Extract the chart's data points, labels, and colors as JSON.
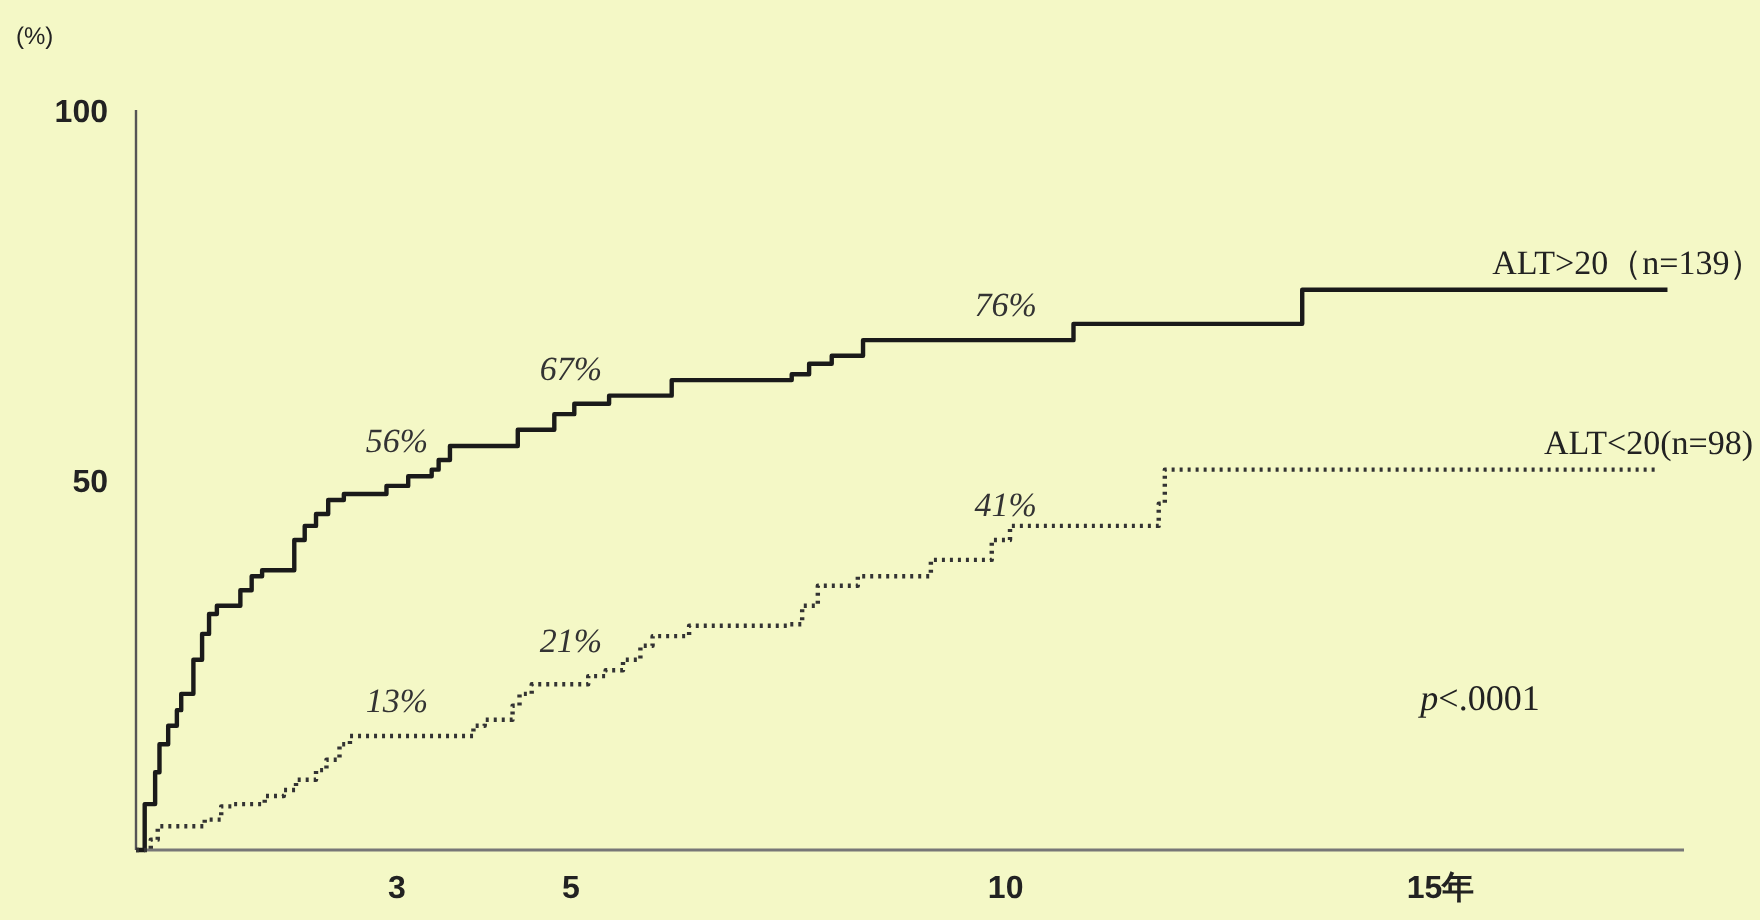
{
  "chart_data": {
    "type": "step",
    "ylabel": "(%)",
    "xlim": [
      0,
      17.8
    ],
    "ylim": [
      0,
      100
    ],
    "xticks": [
      3,
      5,
      10,
      {
        "value": 15,
        "label": "15年"
      }
    ],
    "yticks": [
      50,
      100
    ],
    "grid": false,
    "legend": false,
    "marker": "none",
    "series": [
      {
        "name": "ALT>20（n=139）",
        "color": "#1a1a1a",
        "line_style": "solid",
        "x": [
          0,
          0.1,
          0.22,
          0.27,
          0.37,
          0.47,
          0.52,
          0.66,
          0.76,
          0.84,
          0.93,
          1.2,
          1.33,
          1.45,
          1.82,
          1.94,
          2.07,
          2.21,
          2.39,
          2.88,
          3.13,
          3.4,
          3.48,
          3.61,
          4.39,
          4.81,
          5.04,
          5.44,
          6.16,
          7.54,
          7.74,
          8.0,
          8.36,
          10.78,
          13.41,
          17.61
        ],
        "values": [
          0,
          6.2,
          10.5,
          14.3,
          16.8,
          18.9,
          21.1,
          25.7,
          29.2,
          31.9,
          33.0,
          35.1,
          37.0,
          37.8,
          41.9,
          43.8,
          45.4,
          47.3,
          48.1,
          49.2,
          50.5,
          51.4,
          52.7,
          54.6,
          56.8,
          58.9,
          60.3,
          61.4,
          63.5,
          64.3,
          65.7,
          66.8,
          68.9,
          71.1,
          75.7,
          75.7
        ]
      },
      {
        "name": "ALT<20(n=98)",
        "color": "#333333",
        "line_style": "dotted",
        "x": [
          0,
          0.17,
          0.25,
          0.79,
          0.98,
          1.11,
          1.48,
          1.7,
          1.84,
          2.07,
          2.19,
          2.34,
          2.46,
          3.88,
          4.01,
          4.33,
          4.41,
          4.55,
          5.2,
          5.4,
          5.6,
          5.8,
          5.94,
          6.36,
          7.5,
          7.66,
          7.84,
          8.3,
          9.14,
          9.84,
          10.05,
          11.76,
          11.83,
          17.49
        ],
        "values": [
          0,
          1.4,
          3.2,
          4.1,
          5.9,
          6.2,
          7.3,
          8.1,
          9.5,
          10.8,
          12.2,
          14.3,
          15.4,
          16.8,
          17.6,
          19.5,
          21.1,
          22.4,
          23.5,
          24.3,
          25.7,
          27.6,
          28.9,
          30.3,
          30.5,
          33.0,
          35.7,
          37.0,
          39.2,
          41.9,
          43.8,
          46.8,
          51.4,
          51.4
        ]
      }
    ],
    "annotations": [
      {
        "text": "56%",
        "x": 3,
        "y": 50.5
      },
      {
        "text": "67%",
        "x": 5,
        "y": 60.3
      },
      {
        "text": "76%",
        "x": 10,
        "y": 68.9
      },
      {
        "text": "13%",
        "x": 3,
        "y": 15.4
      },
      {
        "text": "21%",
        "x": 5,
        "y": 23.5
      },
      {
        "text": "41%",
        "x": 10,
        "y": 41.9
      },
      "*p*<.0001"
    ]
  }
}
